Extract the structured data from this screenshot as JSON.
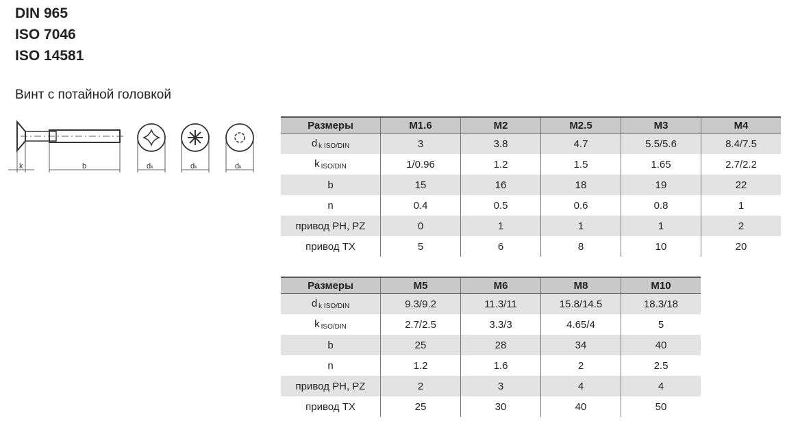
{
  "standards": [
    "DIN 965",
    "ISO 7046",
    "ISO 14581"
  ],
  "subtitle": "Винт с потайной головкой",
  "drawing": {
    "labels": {
      "k": "k",
      "b": "b",
      "dk": "d",
      "dk_sub": "k"
    },
    "heads": [
      "phillips-PH",
      "pozidriv-PZ",
      "torx-TX"
    ]
  },
  "colors": {
    "header_bg": "#c9c9c9",
    "stripe_bg": "#e3e3e3"
  },
  "tables": [
    {
      "header": [
        "Размеры",
        "M1.6",
        "M2",
        "M2.5",
        "M3",
        "M4"
      ],
      "rows": [
        {
          "label": "d",
          "sub": "k ISO/DIN",
          "values": [
            "3",
            "3.8",
            "4.7",
            "5.5/5.6",
            "8.4/7.5"
          ]
        },
        {
          "label": "k",
          "sub": "ISO/DIN",
          "values": [
            "1/0.96",
            "1.2",
            "1.5",
            "1.65",
            "2.7/2.2"
          ]
        },
        {
          "label": "b",
          "sub": "",
          "values": [
            "15",
            "16",
            "18",
            "19",
            "22"
          ]
        },
        {
          "label": "n",
          "sub": "",
          "values": [
            "0.4",
            "0.5",
            "0.6",
            "0.8",
            "1"
          ]
        },
        {
          "label": "привод PH, PZ",
          "sub": "",
          "values": [
            "0",
            "1",
            "1",
            "1",
            "2"
          ]
        },
        {
          "label": "привод TX",
          "sub": "",
          "values": [
            "5",
            "6",
            "8",
            "10",
            "20"
          ]
        }
      ]
    },
    {
      "header": [
        "Размеры",
        "M5",
        "M6",
        "M8",
        "M10"
      ],
      "rows": [
        {
          "label": "d",
          "sub": "k ISO/DIN",
          "values": [
            "9.3/9.2",
            "11.3/11",
            "15.8/14.5",
            "18.3/18"
          ]
        },
        {
          "label": "k",
          "sub": "ISO/DIN",
          "values": [
            "2.7/2.5",
            "3.3/3",
            "4.65/4",
            "5"
          ]
        },
        {
          "label": "b",
          "sub": "",
          "values": [
            "25",
            "28",
            "34",
            "40"
          ]
        },
        {
          "label": "n",
          "sub": "",
          "values": [
            "1.2",
            "1.6",
            "2",
            "2.5"
          ]
        },
        {
          "label": "привод PH, PZ",
          "sub": "",
          "values": [
            "2",
            "3",
            "4",
            "4"
          ]
        },
        {
          "label": "привод TX",
          "sub": "",
          "values": [
            "25",
            "30",
            "40",
            "50"
          ]
        }
      ]
    }
  ]
}
